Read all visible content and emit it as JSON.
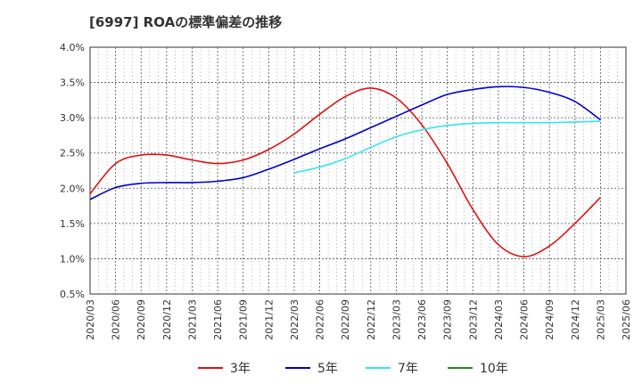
{
  "chart_data": {
    "type": "line",
    "title": "[6997]  ROAの標準偏差の推移",
    "y_unit": "%",
    "ylim": [
      0.5,
      4.0
    ],
    "y_ticks": [
      "0.5%",
      "1.0%",
      "1.5%",
      "2.0%",
      "2.5%",
      "3.0%",
      "3.5%",
      "4.0%"
    ],
    "x_ticks": [
      "2020/03",
      "2020/06",
      "2020/09",
      "2020/12",
      "2021/03",
      "2021/06",
      "2021/09",
      "2021/12",
      "2022/03",
      "2022/06",
      "2022/09",
      "2022/12",
      "2023/03",
      "2023/06",
      "2023/09",
      "2023/12",
      "2024/03",
      "2024/06",
      "2024/09",
      "2024/12",
      "2025/03",
      "2025/06"
    ],
    "grid": true,
    "legend_position": "bottom",
    "series": [
      {
        "name": "3年",
        "color": "#dd1111",
        "values": [
          1.92,
          2.35,
          2.47,
          2.47,
          2.4,
          2.35,
          2.4,
          2.55,
          2.77,
          3.05,
          3.3,
          3.42,
          3.28,
          2.9,
          2.35,
          1.7,
          1.2,
          1.03,
          1.18,
          1.5,
          1.87
        ]
      },
      {
        "name": "5年",
        "color": "#0000cc",
        "values": [
          1.84,
          2.01,
          2.07,
          2.08,
          2.08,
          2.1,
          2.15,
          2.27,
          2.41,
          2.56,
          2.7,
          2.86,
          3.02,
          3.18,
          3.33,
          3.4,
          3.44,
          3.43,
          3.36,
          3.23,
          2.97
        ]
      },
      {
        "name": "7年",
        "color": "#33e6f0",
        "values": [
          null,
          null,
          null,
          null,
          null,
          null,
          null,
          null,
          2.22,
          2.3,
          2.42,
          2.58,
          2.73,
          2.83,
          2.89,
          2.92,
          2.93,
          2.93,
          2.93,
          2.94,
          2.95
        ]
      },
      {
        "name": "10年",
        "color": "#228822",
        "values": [
          null,
          null,
          null,
          null,
          null,
          null,
          null,
          null,
          null,
          null,
          null,
          null,
          null,
          null,
          null,
          null,
          null,
          null,
          null,
          null,
          null
        ]
      }
    ]
  }
}
